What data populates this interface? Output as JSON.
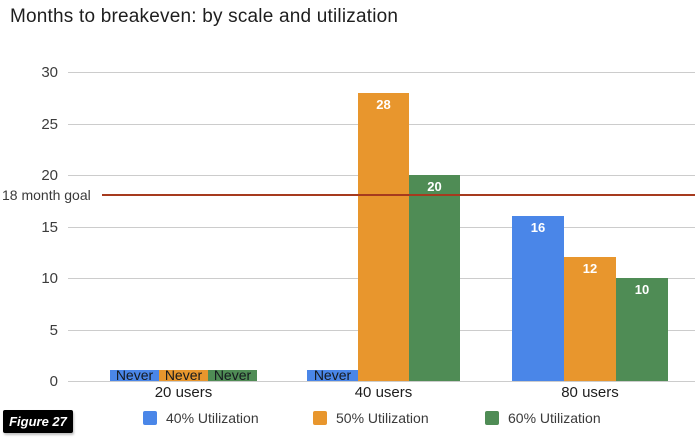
{
  "figure_label": "Figure 27",
  "chart_data": {
    "type": "bar",
    "title": "Months to breakeven: by scale and utilization",
    "categories": [
      "20 users",
      "40 users",
      "80 users"
    ],
    "series": [
      {
        "name": "40% Utilization",
        "color": "#4a86e8",
        "values": [
          "Never",
          "Never",
          16
        ]
      },
      {
        "name": "50% Utilization",
        "color": "#e8962d",
        "values": [
          "Never",
          28,
          12
        ]
      },
      {
        "name": "60% Utilization",
        "color": "#4f8c55",
        "values": [
          "Never",
          20,
          10
        ]
      }
    ],
    "ylabel": "",
    "xlabel": "",
    "ylim": [
      0,
      30
    ],
    "yticks": [
      0,
      5,
      10,
      15,
      20,
      25,
      30
    ],
    "grid": true,
    "legend_position": "bottom",
    "goal_line": {
      "value": 18,
      "label": "18 month goal",
      "color": "#a63a1e"
    },
    "never_bar_height_units": 1.1
  }
}
